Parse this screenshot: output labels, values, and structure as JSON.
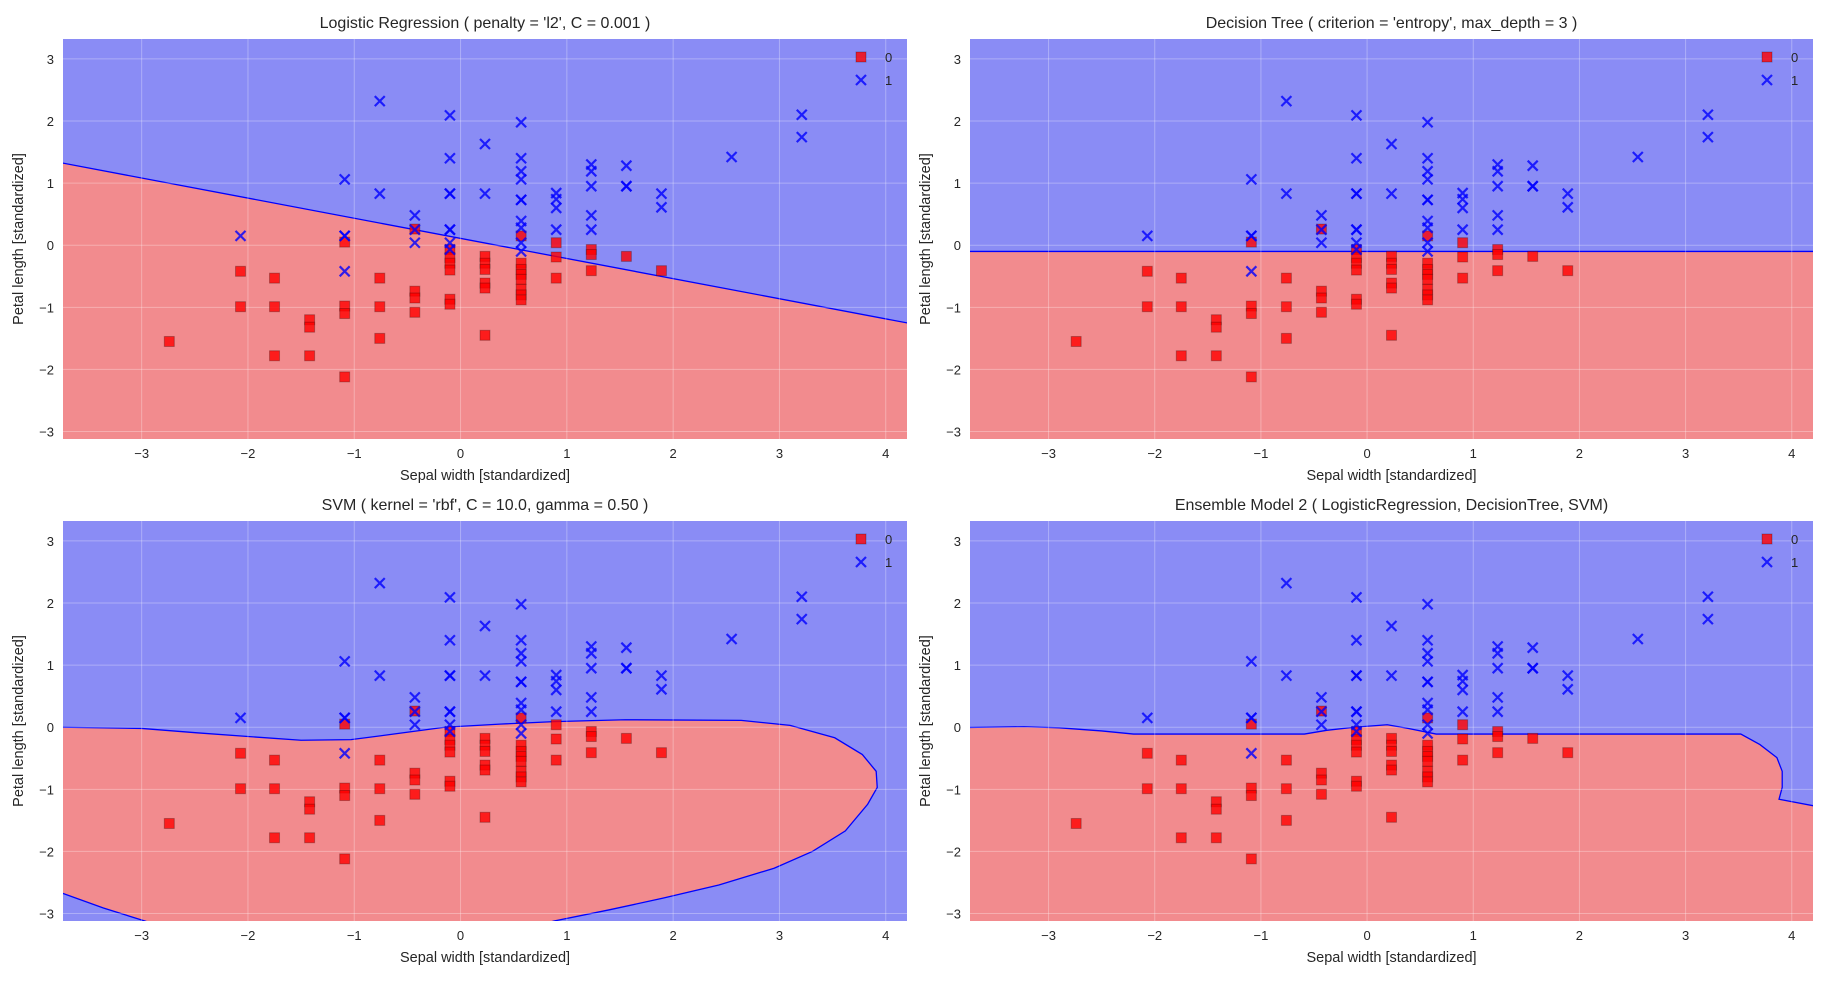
{
  "chart_data": [
    {
      "type": "scatter",
      "title": "Logistic Regression ( penalty = 'l2', C = 0.001 )",
      "xlabel": "Sepal width [standardized]",
      "ylabel": "Petal length [standardized]",
      "xlim": [
        -3.74,
        4.2
      ],
      "ylim": [
        -3.12,
        3.32
      ],
      "xticks": [
        -3,
        -2,
        -1,
        0,
        1,
        2,
        3,
        4
      ],
      "yticks": [
        -3,
        -2,
        -1,
        0,
        1,
        2,
        3
      ],
      "grid": true,
      "legend": "top-right",
      "region_colors": {
        "0": "#f28b8e",
        "1": "#8a8cf5"
      },
      "boundary_color": "#0000ff",
      "class_0_region": [
        [
          -4,
          1.406
        ],
        [
          4.5,
          -1.348
        ],
        [
          4.5,
          -3.5
        ],
        [
          -4,
          -3.5
        ]
      ]
    },
    {
      "type": "scatter",
      "title": "Decision Tree ( criterion = 'entropy', max_depth = 3 )",
      "xlabel": "Sepal width [standardized]",
      "ylabel": "Petal length [standardized]",
      "xlim": [
        -3.74,
        4.2
      ],
      "ylim": [
        -3.12,
        3.32
      ],
      "xticks": [
        -3,
        -2,
        -1,
        0,
        1,
        2,
        3,
        4
      ],
      "yticks": [
        -3,
        -2,
        -1,
        0,
        1,
        2,
        3
      ],
      "grid": true,
      "legend": "top-right",
      "region_colors": {
        "0": "#f28b8e",
        "1": "#8a8cf5"
      },
      "boundary_color": "#0000ff",
      "class_0_region": [
        [
          -4,
          -0.1
        ],
        [
          4.5,
          -0.1
        ],
        [
          4.5,
          -3.5
        ],
        [
          -4,
          -3.5
        ]
      ]
    },
    {
      "type": "scatter",
      "title": "SVM ( kernel = 'rbf', C = 10.0, gamma = 0.50 )",
      "xlabel": "Sepal width [standardized]",
      "ylabel": "Petal length [standardized]",
      "xlim": [
        -3.74,
        4.2
      ],
      "ylim": [
        -3.12,
        3.32
      ],
      "xticks": [
        -3,
        -2,
        -1,
        0,
        1,
        2,
        3,
        4
      ],
      "yticks": [
        -3,
        -2,
        -1,
        0,
        1,
        2,
        3
      ],
      "grid": true,
      "legend": "top-right",
      "region_colors": {
        "0": "#f28b8e",
        "1": "#8a8cf5"
      },
      "boundary_color": "#0000ff",
      "class_0_region": [
        [
          -4,
          0.0
        ],
        [
          -3.75,
          0.0
        ],
        [
          -3,
          -0.02
        ],
        [
          -2.48,
          -0.09
        ],
        [
          -2,
          -0.15
        ],
        [
          -1.5,
          -0.21
        ],
        [
          -1.03,
          -0.2
        ],
        [
          -0.67,
          -0.12
        ],
        [
          -0.15,
          0
        ],
        [
          0.37,
          0.05
        ],
        [
          0.88,
          0.09
        ],
        [
          1.55,
          0.12
        ],
        [
          2.64,
          0.11
        ],
        [
          3.1,
          0.03
        ],
        [
          3.52,
          -0.17
        ],
        [
          3.78,
          -0.44
        ],
        [
          3.91,
          -0.71
        ],
        [
          3.92,
          -0.97
        ],
        [
          3.83,
          -1.24
        ],
        [
          3.62,
          -1.67
        ],
        [
          3.31,
          -2.0
        ],
        [
          2.95,
          -2.27
        ],
        [
          2.43,
          -2.54
        ],
        [
          1.91,
          -2.75
        ],
        [
          1.4,
          -2.94
        ],
        [
          0.88,
          -3.12
        ],
        [
          0.6,
          -3.25
        ],
        [
          -2.75,
          -3.25
        ],
        [
          -2.97,
          -3.12
        ],
        [
          -3.36,
          -2.91
        ],
        [
          -3.75,
          -2.67
        ],
        [
          -4,
          -2.55
        ]
      ]
    },
    {
      "type": "scatter",
      "title": "Ensemble Model 2 ( LogisticRegression, DecisionTree, SVM)",
      "xlabel": "Sepal width [standardized]",
      "ylabel": "Petal length [standardized]",
      "xlim": [
        -3.74,
        4.2
      ],
      "ylim": [
        -3.12,
        3.32
      ],
      "xticks": [
        -3,
        -2,
        -1,
        0,
        1,
        2,
        3,
        4
      ],
      "yticks": [
        -3,
        -2,
        -1,
        0,
        1,
        2,
        3
      ],
      "grid": true,
      "legend": "top-right",
      "region_colors": {
        "0": "#f28b8e",
        "1": "#8a8cf5"
      },
      "boundary_color": "#0000ff",
      "class_0_region": [
        [
          -4,
          -0.01
        ],
        [
          -3.23,
          0.01
        ],
        [
          -2.9,
          -0.01
        ],
        [
          -2.5,
          -0.06
        ],
        [
          -2.2,
          -0.11
        ],
        [
          -0.59,
          -0.11
        ],
        [
          -0.38,
          -0.05
        ],
        [
          -0.12,
          0
        ],
        [
          0.19,
          0.04
        ],
        [
          0.39,
          -0.02
        ],
        [
          0.65,
          -0.11
        ],
        [
          3.52,
          -0.11
        ],
        [
          3.7,
          -0.28
        ],
        [
          3.86,
          -0.49
        ],
        [
          3.91,
          -0.71
        ],
        [
          3.91,
          -0.97
        ],
        [
          3.88,
          -1.16
        ],
        [
          4.22,
          -1.27
        ],
        [
          4.5,
          -1.3
        ],
        [
          4.5,
          -3.5
        ],
        [
          -4,
          -3.5
        ]
      ]
    }
  ],
  "series": [
    {
      "name": "0",
      "marker": "square",
      "color": "#ff0000",
      "points": [
        [
          -2.74,
          -1.55
        ],
        [
          -2.07,
          -0.42
        ],
        [
          -2.07,
          -0.99
        ],
        [
          -1.75,
          -0.53
        ],
        [
          -1.75,
          -0.99
        ],
        [
          -1.75,
          -1.78
        ],
        [
          -1.42,
          -1.2
        ],
        [
          -1.42,
          -1.32
        ],
        [
          -1.42,
          -1.78
        ],
        [
          -1.09,
          0.05
        ],
        [
          -1.09,
          -0.98
        ],
        [
          -1.09,
          -1.1
        ],
        [
          -1.09,
          -2.12
        ],
        [
          -0.76,
          -0.53
        ],
        [
          -0.76,
          -0.99
        ],
        [
          -0.76,
          -1.5
        ],
        [
          -0.43,
          0.26
        ],
        [
          -0.43,
          -0.74
        ],
        [
          -0.43,
          -0.85
        ],
        [
          -0.43,
          -1.08
        ],
        [
          -0.1,
          -0.07
        ],
        [
          -0.1,
          -0.2
        ],
        [
          -0.1,
          -0.29
        ],
        [
          -0.1,
          -0.4
        ],
        [
          -0.1,
          -0.87
        ],
        [
          -0.1,
          -0.95
        ],
        [
          0.23,
          -0.18
        ],
        [
          0.23,
          -0.29
        ],
        [
          0.23,
          -0.39
        ],
        [
          0.23,
          -0.61
        ],
        [
          0.23,
          -0.69
        ],
        [
          0.23,
          -1.45
        ],
        [
          0.57,
          0.15
        ],
        [
          0.57,
          -0.29
        ],
        [
          0.57,
          -0.39
        ],
        [
          0.57,
          -0.47
        ],
        [
          0.57,
          -0.55
        ],
        [
          0.57,
          -0.71
        ],
        [
          0.57,
          -0.8
        ],
        [
          0.57,
          -0.88
        ],
        [
          0.9,
          0.04
        ],
        [
          0.9,
          -0.19
        ],
        [
          0.9,
          -0.53
        ],
        [
          1.23,
          -0.07
        ],
        [
          1.23,
          -0.15
        ],
        [
          1.23,
          -0.41
        ],
        [
          1.56,
          -0.18
        ],
        [
          1.89,
          -0.41
        ]
      ]
    },
    {
      "name": "1",
      "marker": "x",
      "color": "#0000ff",
      "points": [
        [
          -2.07,
          0.15
        ],
        [
          -1.09,
          1.06
        ],
        [
          -1.09,
          0.15
        ],
        [
          -1.09,
          0.15
        ],
        [
          -1.09,
          -0.42
        ],
        [
          -0.76,
          2.32
        ],
        [
          -0.76,
          0.83
        ],
        [
          -0.43,
          0.48
        ],
        [
          -0.43,
          0.25
        ],
        [
          -0.43,
          0.04
        ],
        [
          -0.1,
          2.09
        ],
        [
          -0.1,
          1.4
        ],
        [
          -0.1,
          0.83
        ],
        [
          -0.1,
          0.83
        ],
        [
          -0.1,
          0.25
        ],
        [
          -0.1,
          0.25
        ],
        [
          -0.1,
          0.04
        ],
        [
          -0.1,
          -0.07
        ],
        [
          0.23,
          1.63
        ],
        [
          0.23,
          0.83
        ],
        [
          0.57,
          1.98
        ],
        [
          0.57,
          1.4
        ],
        [
          0.57,
          1.19
        ],
        [
          0.57,
          1.06
        ],
        [
          0.57,
          0.73
        ],
        [
          0.57,
          0.73
        ],
        [
          0.57,
          0.39
        ],
        [
          0.57,
          0.28
        ],
        [
          0.57,
          0.04
        ],
        [
          0.57,
          -0.1
        ],
        [
          0.9,
          0.84
        ],
        [
          0.9,
          0.74
        ],
        [
          0.9,
          0.6
        ],
        [
          0.9,
          0.25
        ],
        [
          1.23,
          1.3
        ],
        [
          1.23,
          1.19
        ],
        [
          1.23,
          0.95
        ],
        [
          1.23,
          0.48
        ],
        [
          1.23,
          0.25
        ],
        [
          1.56,
          1.28
        ],
        [
          1.56,
          0.95
        ],
        [
          1.56,
          0.95
        ],
        [
          1.89,
          0.83
        ],
        [
          1.89,
          0.61
        ],
        [
          2.55,
          1.42
        ],
        [
          3.21,
          2.1
        ],
        [
          3.21,
          1.74
        ]
      ]
    }
  ]
}
